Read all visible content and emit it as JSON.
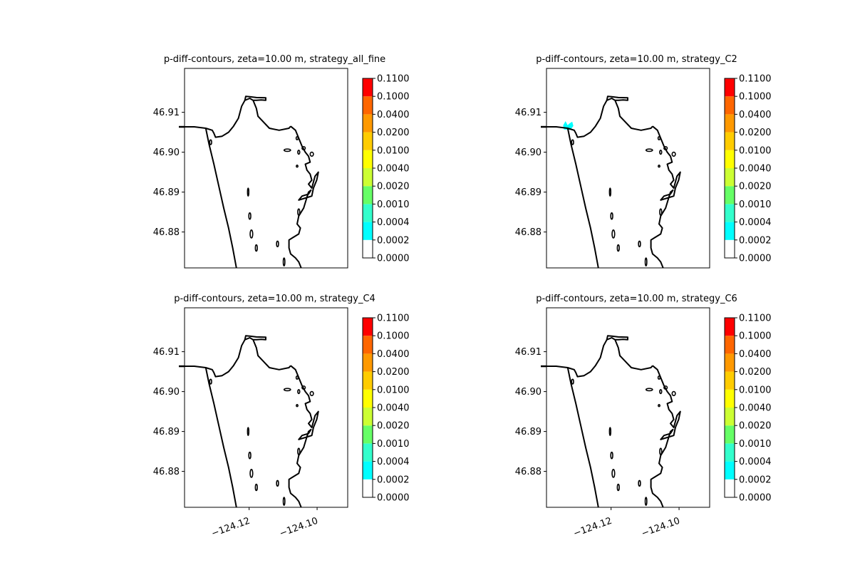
{
  "figure": {
    "panels": [
      {
        "title": "p-diff-contours, zeta=10.00 m, strategy_all_fine",
        "show_xticks": false
      },
      {
        "title": "p-diff-contours, zeta=10.00 m, strategy_C2",
        "show_xticks": false
      },
      {
        "title": "p-diff-contours, zeta=10.00 m, strategy_C4",
        "show_xticks": true
      },
      {
        "title": "p-diff-contours, zeta=10.00 m, strategy_C6",
        "show_xticks": true
      }
    ]
  },
  "chart_data": {
    "type": "heatmap",
    "description_type": "filled contour map with coastline",
    "xlim": [
      -124.139,
      -124.091
    ],
    "ylim": [
      46.871,
      46.921
    ],
    "xticks": [
      {
        "value": -124.12,
        "label": "−124.12"
      },
      {
        "value": -124.1,
        "label": "−124.10"
      }
    ],
    "yticks": [
      {
        "value": 46.91,
        "label": "46.91"
      },
      {
        "value": 46.9,
        "label": "46.90"
      },
      {
        "value": 46.89,
        "label": "46.89"
      },
      {
        "value": 46.88,
        "label": "46.88"
      }
    ],
    "colorbar": {
      "levels": [
        "0.0000",
        "0.0002",
        "0.0004",
        "0.0010",
        "0.0020",
        "0.0040",
        "0.0100",
        "0.0200",
        "0.0400",
        "0.1000",
        "0.1100"
      ],
      "colors": [
        "#ffffff",
        "#00ffff",
        "#33ffcc",
        "#66ff66",
        "#ccff33",
        "#ffff00",
        "#ffcc00",
        "#ff9900",
        "#ff6600",
        "#ff3300",
        "#ff0000"
      ]
    },
    "panels": [
      {
        "strategy": "strategy_all_fine",
        "filled_regions": []
      },
      {
        "strategy": "strategy_C2",
        "filled_regions": [
          {
            "level_index": 1,
            "color": "#00ffff",
            "polygon": [
              [
                -124.1338,
                46.9058
              ],
              [
                -124.134,
                46.9067
              ],
              [
                -124.1334,
                46.9076
              ],
              [
                -124.1328,
                46.9066
              ],
              [
                -124.1322,
                46.9071
              ],
              [
                -124.1315,
                46.9075
              ],
              [
                -124.1312,
                46.9066
              ],
              [
                -124.132,
                46.9057
              ]
            ]
          }
        ]
      },
      {
        "strategy": "strategy_C4",
        "filled_regions": []
      },
      {
        "strategy": "strategy_C6",
        "filled_regions": []
      }
    ],
    "coastline_color": "#000000"
  }
}
